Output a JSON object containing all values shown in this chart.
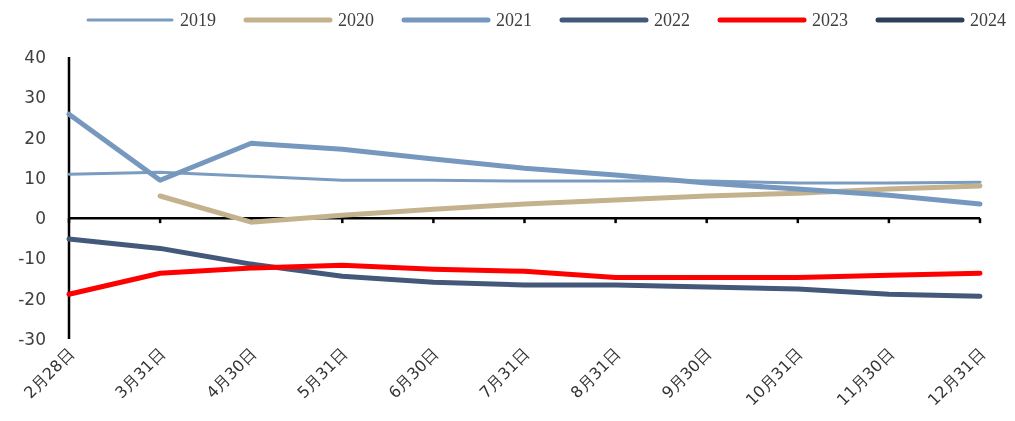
{
  "chart_data": {
    "type": "line",
    "categories": [
      "2月28日",
      "3月31日",
      "4月30日",
      "5月31日",
      "6月30日",
      "7月31日",
      "8月31日",
      "9月30日",
      "10月31日",
      "11月30日",
      "12月31日"
    ],
    "series": [
      {
        "name": "2019",
        "color": "#7a9cc0",
        "values": [
          10.9,
          11.4,
          10.4,
          9.4,
          9.4,
          9.2,
          9.2,
          9.2,
          8.7,
          8.7,
          8.9
        ]
      },
      {
        "name": "2020",
        "color": "#c4b28e",
        "values": [
          null,
          5.5,
          -1.0,
          0.7,
          2.2,
          3.5,
          4.5,
          5.5,
          6.2,
          7.2,
          8.0
        ]
      },
      {
        "name": "2021",
        "color": "#7698be",
        "values": [
          25.8,
          9.4,
          18.6,
          17.1,
          14.7,
          12.4,
          10.7,
          8.7,
          7.2,
          5.7,
          3.5
        ]
      },
      {
        "name": "2022",
        "color": "#44587a",
        "values": [
          -5.2,
          -7.5,
          -11.4,
          -14.4,
          -15.9,
          -16.6,
          -16.6,
          -17.1,
          -17.6,
          -18.9,
          -19.4
        ]
      },
      {
        "name": "2023",
        "color": "#ff0000",
        "values": [
          -18.9,
          -13.7,
          -12.4,
          -11.7,
          -12.7,
          -13.2,
          -14.7,
          -14.7,
          -14.7,
          -14.2,
          -13.7
        ]
      },
      {
        "name": "2024",
        "color": "#2e3f5c",
        "values": [
          null,
          null,
          null,
          null,
          null,
          null,
          null,
          null,
          null,
          null,
          null
        ]
      }
    ],
    "ylim": [
      -30,
      40
    ],
    "yticks": [
      -30,
      -20,
      -10,
      0,
      10,
      20,
      30,
      40
    ],
    "legend": "top",
    "marker": "none",
    "line_style": "solid"
  }
}
